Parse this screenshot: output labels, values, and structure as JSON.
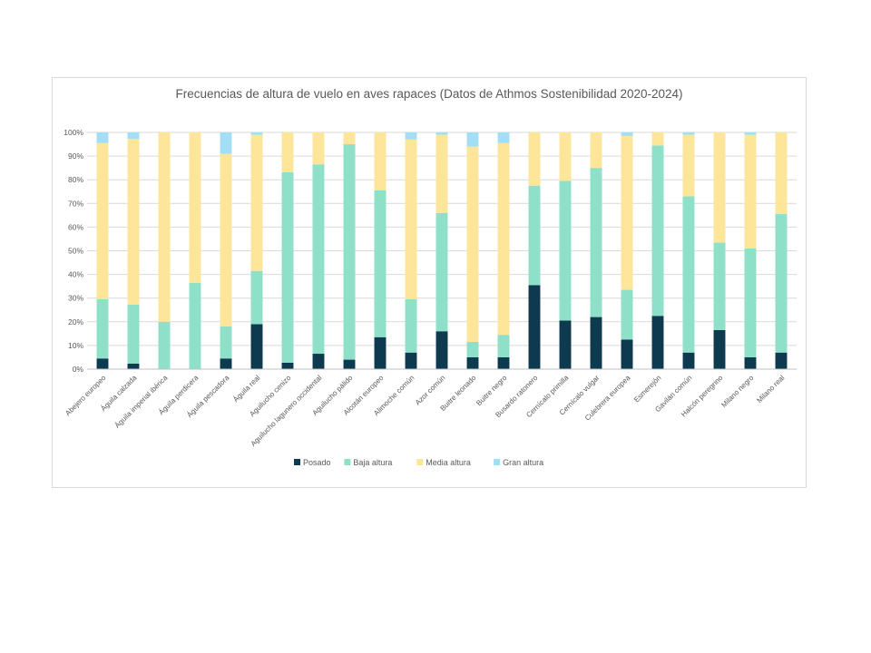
{
  "chart_data": {
    "type": "bar",
    "stacked": true,
    "percent": true,
    "title": "Frecuencias de altura de vuelo en aves rapaces (Datos de Athmos Sostenibilidad 2020-2024)",
    "xlabel": "",
    "ylabel": "",
    "ylim": [
      0,
      100
    ],
    "yticks": [
      "0%",
      "10%",
      "20%",
      "30%",
      "40%",
      "50%",
      "60%",
      "70%",
      "80%",
      "90%",
      "100%"
    ],
    "grid": true,
    "legend": "bottom",
    "categories": [
      "Abejero europeo",
      "Águila calzada",
      "Águila imperial ibérica",
      "Águila perdicera",
      "Águila pescadora",
      "Águila real",
      "Aguilucho cenizo",
      "Aguilucho lagunero occidental",
      "Aguilucho pálido",
      "Alcotán europeo",
      "Alimoche común",
      "Azor común",
      "Buitre leonado",
      "Buitre negro",
      "Busardo ratonero",
      "Cernícalo primilla",
      "Cernícalo vulgar",
      "Culebrera europea",
      "Esmerejón",
      "Gavilán común",
      "Halcón peregrino",
      "Milano negro",
      "Milano real"
    ],
    "series": [
      {
        "name": "Posado",
        "color": "#0e3a4f",
        "values": [
          4.5,
          2.3,
          0,
          0,
          4.5,
          19,
          2.7,
          6.5,
          4,
          13.5,
          7,
          16,
          5,
          5,
          35.5,
          20.5,
          22,
          12.5,
          22.5,
          7,
          16.5,
          5,
          7
        ]
      },
      {
        "name": "Baja altura",
        "color": "#8ee0c8",
        "values": [
          25,
          25,
          20,
          36.5,
          13.5,
          22.5,
          80.5,
          80,
          91,
          62,
          22.5,
          50,
          6.5,
          9.5,
          42,
          59,
          63,
          21,
          72,
          66,
          37,
          46,
          58.5
        ]
      },
      {
        "name": "Media altura",
        "color": "#fde69a",
        "values": [
          66,
          70,
          80,
          63.5,
          73,
          57.5,
          16.8,
          13.5,
          5,
          24.5,
          67.5,
          33,
          82.5,
          81,
          22.5,
          20.5,
          15,
          65,
          5.5,
          26,
          46.5,
          48,
          34.5
        ]
      },
      {
        "name": "Gran altura",
        "color": "#a2def4",
        "values": [
          4.5,
          2.7,
          0,
          0,
          9,
          1,
          0,
          0,
          0,
          0,
          3,
          1,
          6,
          4.5,
          0,
          0,
          0,
          1.5,
          0,
          1,
          0,
          1,
          0
        ]
      }
    ]
  }
}
